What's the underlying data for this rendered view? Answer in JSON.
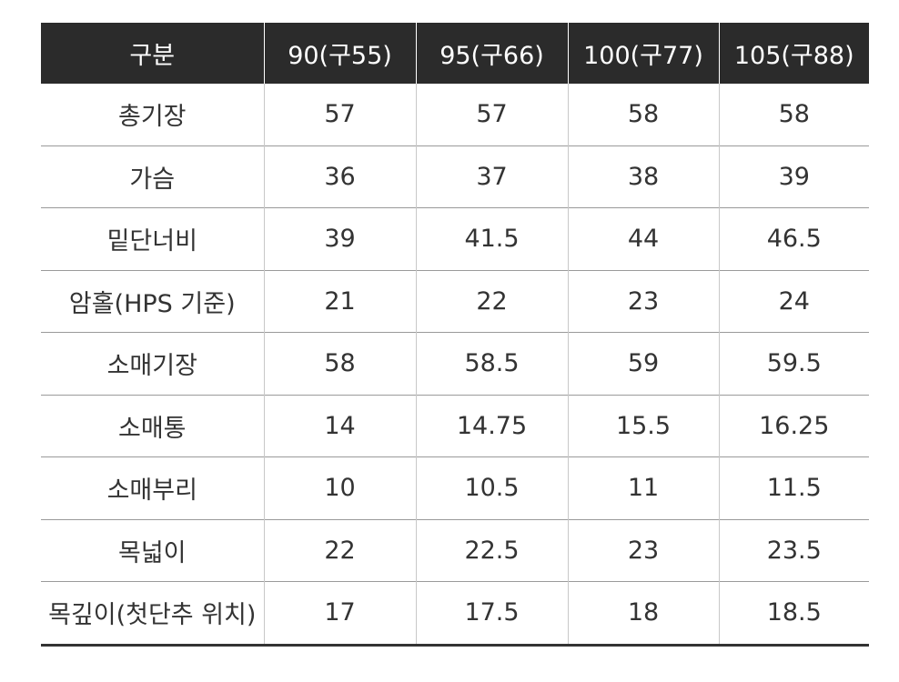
{
  "table": {
    "header": [
      "구분",
      "90(구55)",
      "95(구66)",
      "100(구77)",
      "105(구88)"
    ],
    "rows": [
      [
        "총기장",
        "57",
        "57",
        "58",
        "58"
      ],
      [
        "가슴",
        "36",
        "37",
        "38",
        "39"
      ],
      [
        "밑단너비",
        "39",
        "41.5",
        "44",
        "46.5"
      ],
      [
        "암홀(HPS 기준)",
        "21",
        "22",
        "23",
        "24"
      ],
      [
        "소매기장",
        "58",
        "58.5",
        "59",
        "59.5"
      ],
      [
        "소매통",
        "14",
        "14.75",
        "15.5",
        "16.25"
      ],
      [
        "소매부리",
        "10",
        "10.5",
        "11",
        "11.5"
      ],
      [
        "목넓이",
        "22",
        "22.5",
        "23",
        "23.5"
      ],
      [
        "목깊이(첫단추 위치)",
        "17",
        "17.5",
        "18",
        "18.5"
      ]
    ]
  }
}
